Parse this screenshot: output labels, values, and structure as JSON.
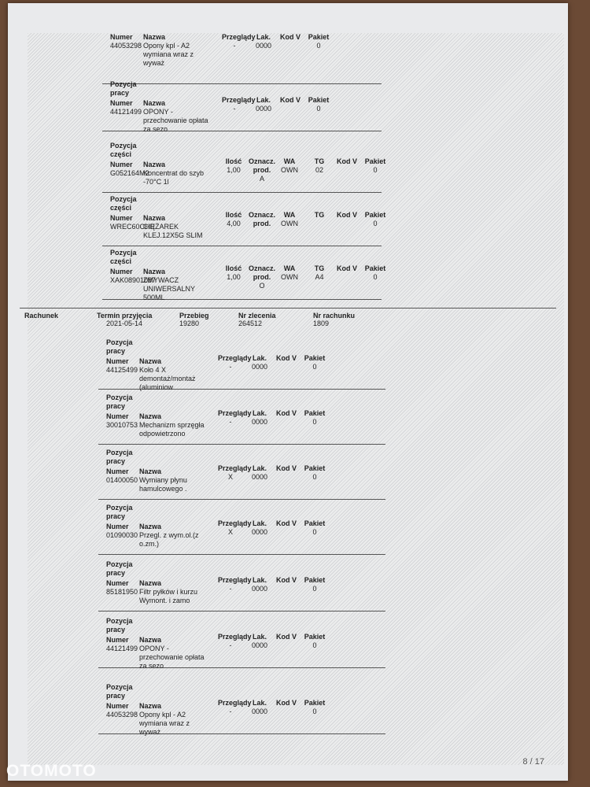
{
  "items": {
    "top": [
      {
        "columns": [
          {
            "label": "Numer",
            "value": "44053298"
          },
          {
            "label": "Nazwa",
            "value": "Opony kpl - A2 wymiana wraz z wyważ"
          },
          {
            "label": "Przeglądy",
            "value": "-"
          },
          {
            "label": "Lak.",
            "value": "0000"
          },
          {
            "label": "Kod V"
          },
          {
            "label": "Pakiet",
            "value": "0"
          }
        ]
      },
      {
        "heading": "Pozycja pracy",
        "columns": [
          {
            "label": "Numer",
            "value": "44121499"
          },
          {
            "label": "Nazwa",
            "value": "OPONY - przechowanie opłata za sezo"
          },
          {
            "label": "Przeglądy",
            "value": "-"
          },
          {
            "label": "Lak.",
            "value": "0000"
          },
          {
            "label": "Kod V"
          },
          {
            "label": "Pakiet",
            "value": "0"
          }
        ]
      },
      {
        "heading": "Pozycja części",
        "columns": [
          {
            "label": "Numer",
            "value": "G052164M2"
          },
          {
            "label": "Nazwa",
            "value": "Koncentrat do szyb -70°C 1l"
          },
          {
            "label": "Ilość",
            "value": "1,00"
          },
          {
            "label": "Oznacz. prod.",
            "value": "A"
          },
          {
            "label": "WA",
            "value": "OWN"
          },
          {
            "label": "TG",
            "value": "02"
          },
          {
            "label": "Kod V"
          },
          {
            "label": "Pakiet",
            "value": "0"
          }
        ]
      },
      {
        "heading": "Pozycja części",
        "columns": [
          {
            "label": "Numer",
            "value": "WREC60CHR"
          },
          {
            "label": "Nazwa",
            "value": "CIĘŻAREK KLEJ.12X5G SLIM"
          },
          {
            "label": "Ilość",
            "value": "4,00"
          },
          {
            "label": "Oznacz. prod."
          },
          {
            "label": "WA",
            "value": "OWN"
          },
          {
            "label": "TG"
          },
          {
            "label": "Kod V"
          },
          {
            "label": "Pakiet",
            "value": "0"
          }
        ]
      },
      {
        "heading": "Pozycja części",
        "columns": [
          {
            "label": "Numer",
            "value": "XAK08901087"
          },
          {
            "label": "Nazwa",
            "value": "ZMYWACZ UNIWERSALNY 500ML"
          },
          {
            "label": "Ilość",
            "value": "1,00"
          },
          {
            "label": "Oznacz. prod.",
            "value": "O"
          },
          {
            "label": "WA",
            "value": "OWN"
          },
          {
            "label": "TG",
            "value": "A4"
          },
          {
            "label": "Kod V"
          },
          {
            "label": "Pakiet",
            "value": "0"
          }
        ]
      }
    ],
    "bottom": [
      {
        "heading": "Pozycja pracy",
        "columns": [
          {
            "label": "Numer",
            "value": "44125499"
          },
          {
            "label": "Nazwa",
            "value": "Koło 4 X demontaż/montaż (aluminiow"
          },
          {
            "label": "Przeglądy",
            "value": "-"
          },
          {
            "label": "Lak.",
            "value": "0000"
          },
          {
            "label": "Kod V"
          },
          {
            "label": "Pakiet",
            "value": "0"
          }
        ]
      },
      {
        "heading": "Pozycja pracy",
        "columns": [
          {
            "label": "Numer",
            "value": "30010753"
          },
          {
            "label": "Nazwa",
            "value": "Mechanizm sprzęgła odpowietrzono"
          },
          {
            "label": "Przeglądy",
            "value": "-"
          },
          {
            "label": "Lak.",
            "value": "0000"
          },
          {
            "label": "Kod V"
          },
          {
            "label": "Pakiet",
            "value": "0"
          }
        ]
      },
      {
        "heading": "Pozycja pracy",
        "columns": [
          {
            "label": "Numer",
            "value": "01400050"
          },
          {
            "label": "Nazwa",
            "value": "Wymiany płynu hamulcowego ."
          },
          {
            "label": "Przeglądy",
            "value": "X"
          },
          {
            "label": "Lak.",
            "value": "0000"
          },
          {
            "label": "Kod V"
          },
          {
            "label": "Pakiet",
            "value": "0"
          }
        ]
      },
      {
        "heading": "Pozycja pracy",
        "columns": [
          {
            "label": "Numer",
            "value": "01090030"
          },
          {
            "label": "Nazwa",
            "value": "Przegl. z wym.ol.(z o.zm.)"
          },
          {
            "label": "Przeglądy",
            "value": "X"
          },
          {
            "label": "Lak.",
            "value": "0000"
          },
          {
            "label": "Kod V"
          },
          {
            "label": "Pakiet",
            "value": "0"
          }
        ]
      },
      {
        "heading": "Pozycja pracy",
        "columns": [
          {
            "label": "Numer",
            "value": "85181950"
          },
          {
            "label": "Nazwa",
            "value": "Filtr pyłków i kurzu Wymont. i zamo"
          },
          {
            "label": "Przeglądy",
            "value": "-"
          },
          {
            "label": "Lak.",
            "value": "0000"
          },
          {
            "label": "Kod V"
          },
          {
            "label": "Pakiet",
            "value": "0"
          }
        ]
      },
      {
        "heading": "Pozycja pracy",
        "columns": [
          {
            "label": "Numer",
            "value": "44121499"
          },
          {
            "label": "Nazwa",
            "value": "OPONY - przechowanie opłata za sezo"
          },
          {
            "label": "Przeglądy",
            "value": "-"
          },
          {
            "label": "Lak.",
            "value": "0000"
          },
          {
            "label": "Kod V"
          },
          {
            "label": "Pakiet",
            "value": "0"
          }
        ]
      },
      {
        "heading": "Pozycja pracy",
        "columns": [
          {
            "label": "Numer",
            "value": "44053298"
          },
          {
            "label": "Nazwa",
            "value": "Opony kpl - A2 wymiana wraz z wyważ"
          },
          {
            "label": "Przeglądy",
            "value": "-"
          },
          {
            "label": "Lak.",
            "value": "0000"
          },
          {
            "label": "Kod V"
          },
          {
            "label": "Pakiet",
            "value": "0"
          }
        ]
      }
    ]
  },
  "invoice": {
    "label": "Rachunek",
    "fields": [
      {
        "label": "Termin przyjęcia",
        "value": "2021-05-14"
      },
      {
        "label": "Przebieg",
        "value": "19280"
      },
      {
        "label": "Nr zlecenia",
        "value": "264512"
      },
      {
        "label": "Nr rachunku",
        "value": "1809"
      }
    ]
  },
  "footer": {
    "page": "8 / 17"
  },
  "watermark": "OTOMOTO"
}
